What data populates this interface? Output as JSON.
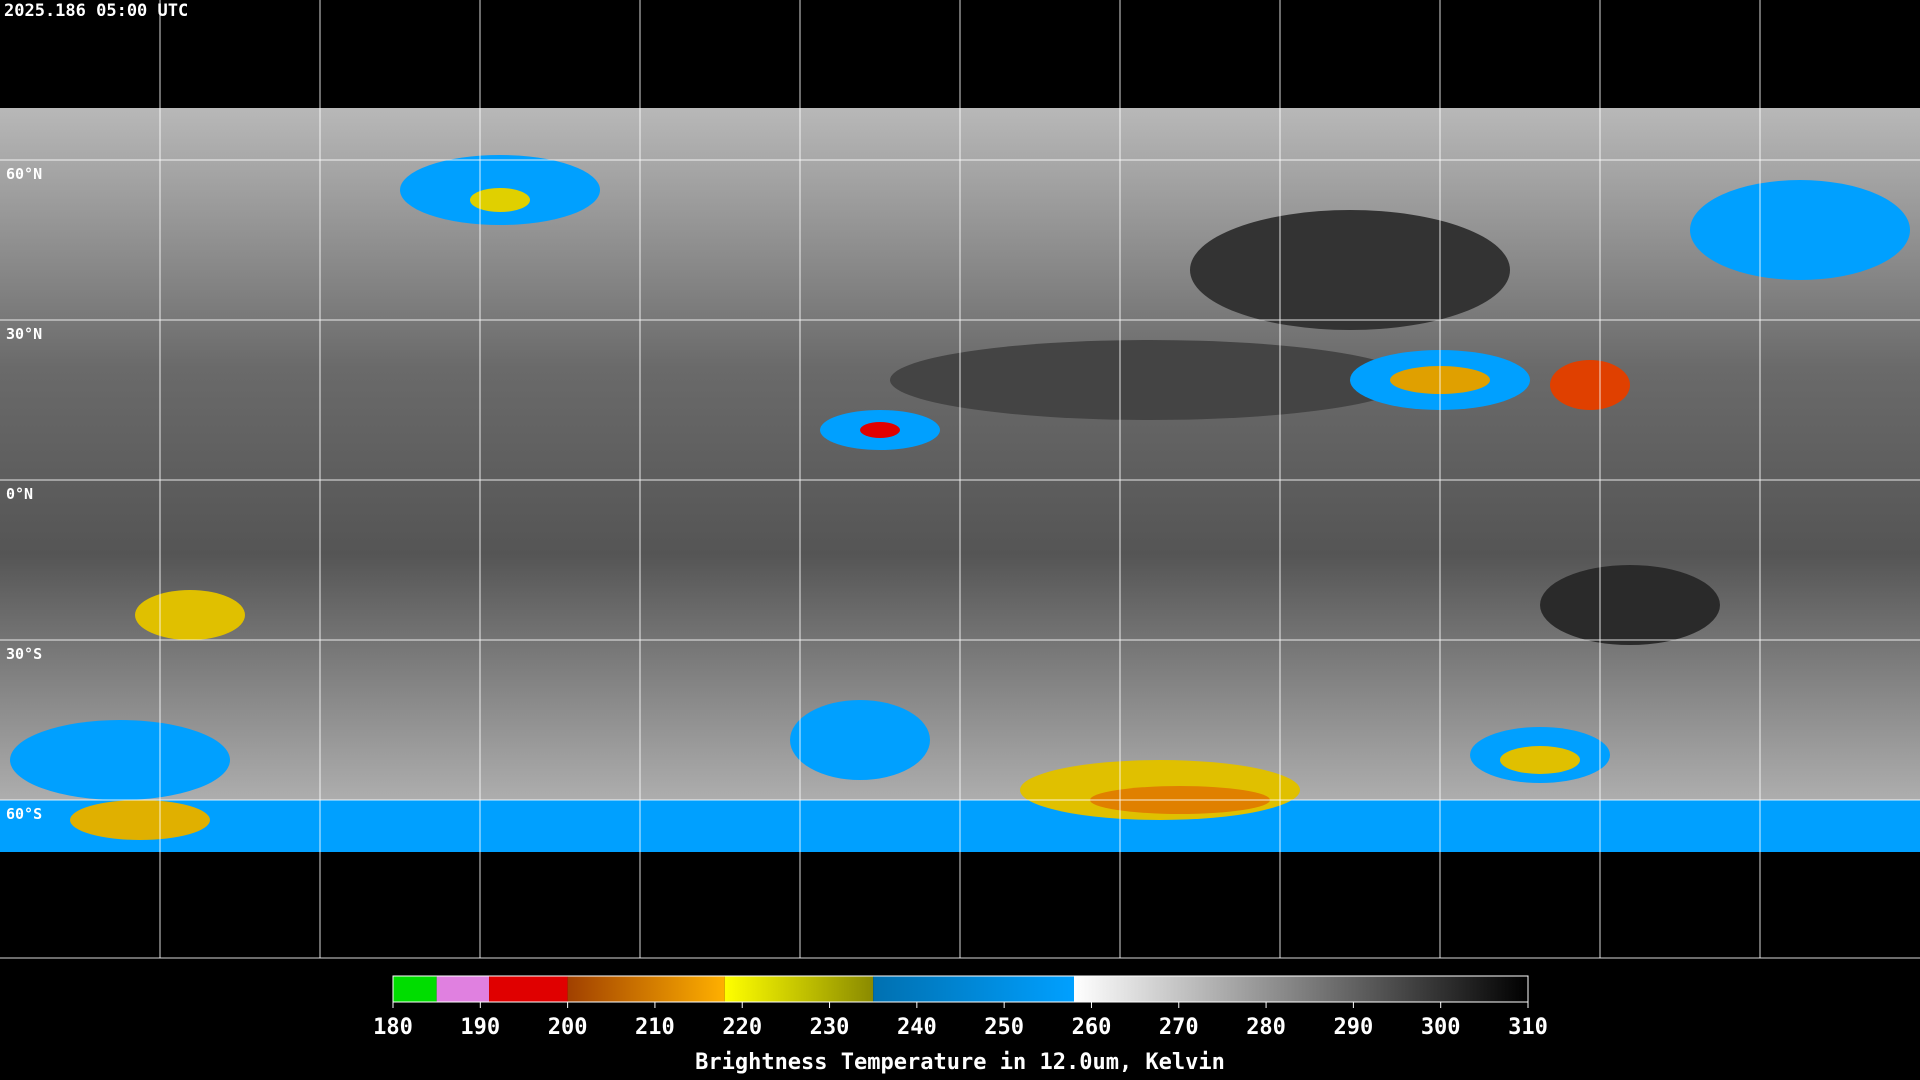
{
  "header": {
    "title": "2025.186 05:00 UTC"
  },
  "map": {
    "lat_labels": [
      "60°N",
      "30°N",
      "0°N",
      "30°S",
      "60°S"
    ]
  },
  "colorbar": {
    "lim": [
      180,
      310
    ],
    "ticks": [
      180,
      190,
      200,
      210,
      220,
      230,
      240,
      250,
      260,
      270,
      280,
      290,
      300,
      310
    ],
    "segments": [
      {
        "from": 180,
        "to": 185,
        "color": "#00dd00"
      },
      {
        "from": 185,
        "to": 191,
        "color": "#e080e0"
      },
      {
        "from": 191,
        "to": 200,
        "color": "#e00000"
      },
      {
        "from": 200,
        "to": 218,
        "color": "#a04000",
        "color_end": "#ffb000"
      },
      {
        "from": 218,
        "to": 235,
        "color": "#ffff00",
        "color_end": "#8a8a00"
      },
      {
        "from": 235,
        "to": 258,
        "color": "#0070b0",
        "color_end": "#00a0ff"
      },
      {
        "from": 258,
        "to": 310,
        "color": "#ffffff",
        "color_end": "#000000"
      }
    ],
    "label": "Brightness Temperature in 12.0um, Kelvin"
  }
}
